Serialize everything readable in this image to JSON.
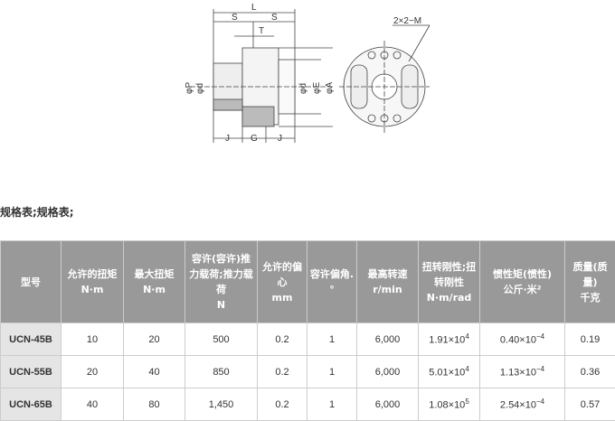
{
  "drawing": {
    "labels": {
      "L": "L",
      "S1": "S",
      "S2": "S",
      "T": "T",
      "P": "φP",
      "d1": "φd",
      "d2": "φd",
      "E": "φE",
      "A": "φA",
      "J1": "J",
      "G": "G",
      "J2": "J",
      "M": "2×2−M"
    }
  },
  "heading": "规格表;规格表;",
  "table": {
    "headers": [
      "型号",
      "允许的扭矩\nN·m",
      "最大扭矩\nN·m",
      "容许(容许)推力载荷;推力载荷\nN",
      "允许的偏心\nmm",
      "容许偏角.\n°",
      "最高转速\nr/min",
      "扭转刚性;扭转刚性\nN·m/rad",
      "惯性矩(惯性)\n公斤·米²",
      "质量(质量)\n千克"
    ],
    "rows": [
      {
        "model": "UCN-45B",
        "torque": "10",
        "max_torque": "20",
        "thrust": "500",
        "ecc": "0.2",
        "angle": "1",
        "speed": "6,000",
        "stiff_m": "1.91×10",
        "stiff_e": "4",
        "inertia_m": "0.40×10",
        "inertia_e": "−4",
        "mass": "0.19"
      },
      {
        "model": "UCN-55B",
        "torque": "20",
        "max_torque": "40",
        "thrust": "850",
        "ecc": "0.2",
        "angle": "1",
        "speed": "6,000",
        "stiff_m": "5.01×10",
        "stiff_e": "4",
        "inertia_m": "1.13×10",
        "inertia_e": "−4",
        "mass": "0.36"
      },
      {
        "model": "UCN-65B",
        "torque": "40",
        "max_torque": "80",
        "thrust": "1,450",
        "ecc": "0.2",
        "angle": "1",
        "speed": "6,000",
        "stiff_m": "1.08×10",
        "stiff_e": "5",
        "inertia_m": "2.54×10",
        "inertia_e": "−4",
        "mass": "0.57"
      }
    ]
  },
  "colors": {
    "header_bg": "#999999",
    "model_bg": "#e5e5e5"
  }
}
